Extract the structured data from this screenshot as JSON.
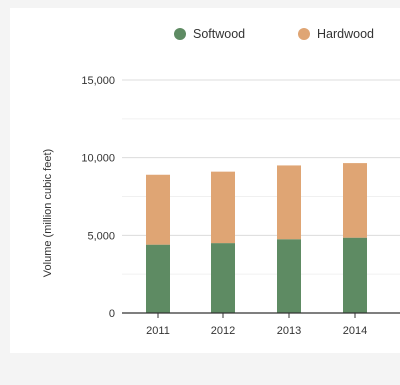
{
  "chart_data": {
    "type": "bar",
    "stacked": true,
    "title": "",
    "xlabel": "",
    "ylabel": "Volume (million cubic feet)",
    "ylim": [
      0,
      15000
    ],
    "y_ticks": [
      "0",
      "5,000",
      "10,000",
      "15,000"
    ],
    "categories": [
      "2011",
      "2012",
      "2013",
      "2014"
    ],
    "series": [
      {
        "name": "Softwood",
        "color": "#5e8b63",
        "values": [
          4400,
          4500,
          4750,
          4850
        ]
      },
      {
        "name": "Hardwood",
        "color": "#dfa574",
        "values": [
          4500,
          4600,
          4750,
          4800
        ]
      }
    ],
    "grid": true,
    "legend_position": "top"
  }
}
